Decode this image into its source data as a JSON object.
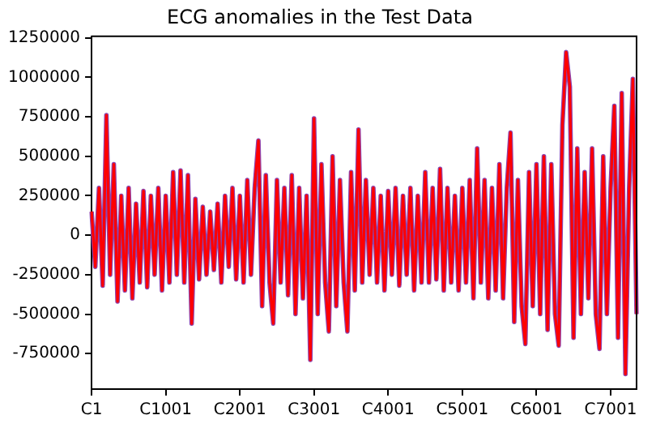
{
  "chart_data": {
    "type": "line",
    "title": "ECG anomalies in the Test Data",
    "categories": [
      "C1",
      null,
      null,
      null,
      null,
      null,
      null,
      null,
      null,
      null,
      null,
      null,
      null,
      null,
      null,
      null,
      null,
      null,
      null,
      null,
      "C1001",
      null,
      null,
      null,
      null,
      null,
      null,
      null,
      null,
      null,
      null,
      null,
      null,
      null,
      null,
      null,
      null,
      null,
      null,
      null,
      "C2001",
      null,
      null,
      null,
      null,
      null,
      null,
      null,
      null,
      null,
      null,
      null,
      null,
      null,
      null,
      null,
      null,
      null,
      null,
      null,
      "C3001",
      null,
      null,
      null,
      null,
      null,
      null,
      null,
      null,
      null,
      null,
      null,
      null,
      null,
      null,
      null,
      null,
      null,
      null,
      null,
      "C4001",
      null,
      null,
      null,
      null,
      null,
      null,
      null,
      null,
      null,
      null,
      null,
      null,
      null,
      null,
      null,
      null,
      null,
      null,
      null,
      "C5001",
      null,
      null,
      null,
      null,
      null,
      null,
      null,
      null,
      null,
      null,
      null,
      null,
      null,
      null,
      null,
      null,
      null,
      null,
      null,
      "C6001",
      null,
      null,
      null,
      null,
      null,
      null,
      null,
      null,
      null,
      null,
      null,
      null,
      null,
      null,
      null,
      null,
      null,
      null,
      null,
      "C7001",
      null,
      null,
      null,
      null,
      null,
      null,
      null
    ],
    "series": [
      {
        "color": "#8e44ad",
        "values": [
          150000,
          -200000,
          300000,
          -320000,
          760000,
          -250000,
          450000,
          -420000,
          250000,
          -350000,
          300000,
          -400000,
          200000,
          -300000,
          280000,
          -330000,
          250000,
          -250000,
          300000,
          -350000,
          250000,
          -300000,
          400000,
          -250000,
          410000,
          -300000,
          380000,
          -560000,
          230000,
          -280000,
          180000,
          -250000,
          150000,
          -220000,
          200000,
          -300000,
          250000,
          -200000,
          300000,
          -280000,
          250000,
          -300000,
          350000,
          -250000,
          300000,
          600000,
          -450000,
          380000,
          -300000,
          -560000,
          350000,
          -300000,
          300000,
          -380000,
          380000,
          -500000,
          300000,
          -400000,
          250000,
          -790000,
          740000,
          -500000,
          450000,
          -300000,
          -610000,
          500000,
          -450000,
          350000,
          -300000,
          -610000,
          400000,
          -350000,
          670000,
          -300000,
          350000,
          -250000,
          300000,
          -300000,
          250000,
          -350000,
          280000,
          -250000,
          300000,
          -320000,
          250000,
          -250000,
          300000,
          -350000,
          250000,
          -300000,
          400000,
          -300000,
          300000,
          -280000,
          420000,
          -350000,
          300000,
          -300000,
          250000,
          -350000,
          300000,
          -300000,
          350000,
          -400000,
          550000,
          -300000,
          350000,
          -400000,
          300000,
          -350000,
          450000,
          -400000,
          300000,
          650000,
          -550000,
          350000,
          -450000,
          -690000,
          400000,
          -450000,
          450000,
          -500000,
          500000,
          -600000,
          450000,
          -500000,
          -700000,
          700000,
          1160000,
          940000,
          -650000,
          550000,
          -500000,
          400000,
          -400000,
          550000,
          -500000,
          -720000,
          500000,
          -500000,
          300000,
          820000,
          -650000,
          900000,
          -880000,
          300000,
          990000,
          -500000
        ]
      },
      {
        "color": "#ff0000",
        "values": [
          150000,
          -200000,
          300000,
          -320000,
          760000,
          -250000,
          450000,
          -420000,
          250000,
          -350000,
          300000,
          -400000,
          200000,
          -300000,
          280000,
          -330000,
          250000,
          -250000,
          300000,
          -350000,
          250000,
          -300000,
          400000,
          -250000,
          410000,
          -300000,
          380000,
          -560000,
          230000,
          -280000,
          180000,
          -250000,
          150000,
          -220000,
          200000,
          -300000,
          250000,
          -200000,
          300000,
          -280000,
          250000,
          -300000,
          350000,
          -250000,
          300000,
          600000,
          -450000,
          380000,
          -300000,
          -560000,
          350000,
          -300000,
          300000,
          -380000,
          380000,
          -500000,
          300000,
          -400000,
          250000,
          -790000,
          740000,
          -500000,
          450000,
          -300000,
          -610000,
          500000,
          -450000,
          350000,
          -300000,
          -610000,
          400000,
          -350000,
          670000,
          -300000,
          350000,
          -250000,
          300000,
          -300000,
          250000,
          -350000,
          280000,
          -250000,
          300000,
          -320000,
          250000,
          -250000,
          300000,
          -350000,
          250000,
          -300000,
          400000,
          -300000,
          300000,
          -280000,
          420000,
          -350000,
          300000,
          -300000,
          250000,
          -350000,
          300000,
          -300000,
          350000,
          -400000,
          550000,
          -300000,
          350000,
          -400000,
          300000,
          -350000,
          450000,
          -400000,
          300000,
          650000,
          -550000,
          350000,
          -450000,
          -690000,
          400000,
          -450000,
          450000,
          -500000,
          500000,
          -600000,
          450000,
          -500000,
          -700000,
          700000,
          1160000,
          940000,
          -650000,
          550000,
          -500000,
          400000,
          -400000,
          550000,
          -500000,
          -720000,
          500000,
          -500000,
          300000,
          820000,
          -650000,
          900000,
          -880000,
          300000,
          990000,
          -500000
        ]
      }
    ],
    "ylim": [
      -975000,
      1260000
    ],
    "yticks": [
      -750000,
      -500000,
      -250000,
      0,
      250000,
      500000,
      750000,
      1000000,
      1250000
    ],
    "grid": false,
    "legend": false,
    "marker": "none",
    "line_style": "solid"
  }
}
